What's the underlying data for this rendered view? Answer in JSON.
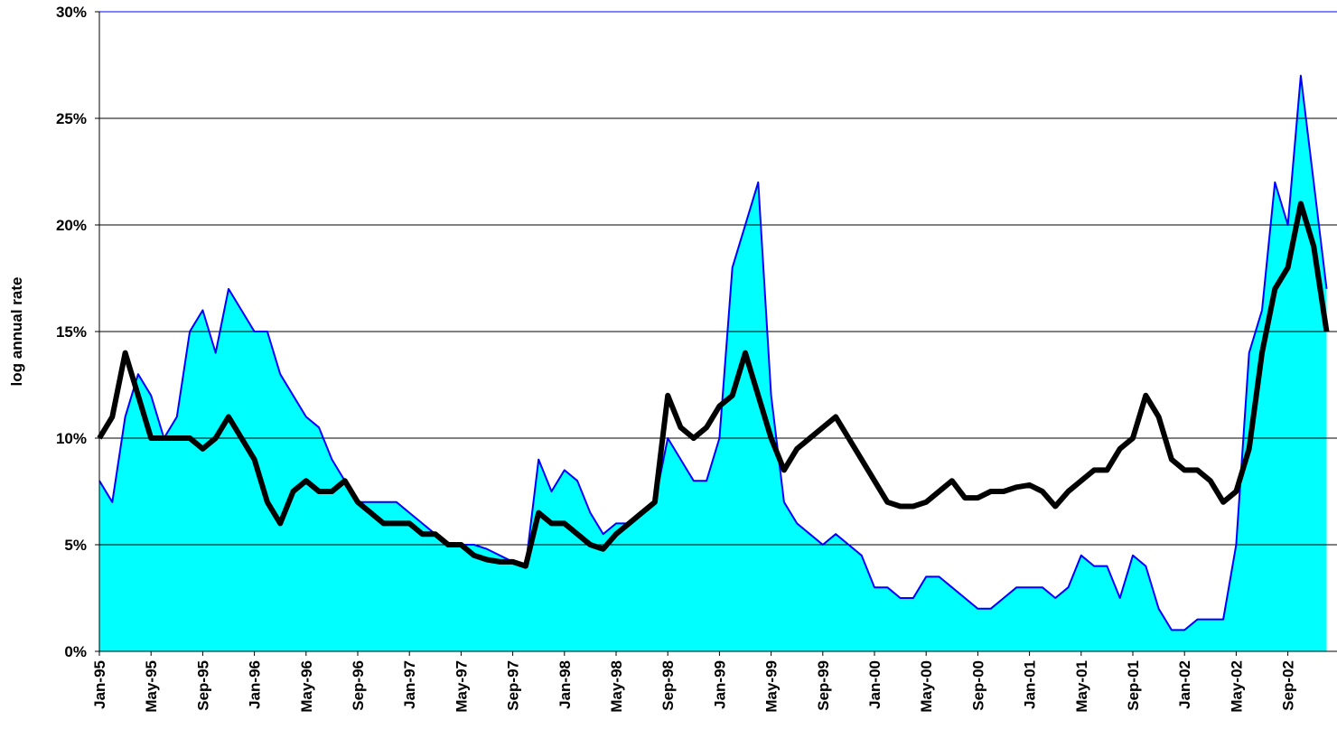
{
  "chart_data": {
    "type": "line",
    "ylabel": "log annual rate",
    "categories": [
      "Jan-95",
      null,
      null,
      null,
      "May-95",
      null,
      null,
      null,
      "Sep-95",
      null,
      null,
      null,
      "Jan-96",
      null,
      null,
      null,
      "May-96",
      null,
      null,
      null,
      "Sep-96",
      null,
      null,
      null,
      "Jan-97",
      null,
      null,
      null,
      "May-97",
      null,
      null,
      null,
      "Sep-97",
      null,
      null,
      null,
      "Jan-98",
      null,
      null,
      null,
      "May-98",
      null,
      null,
      null,
      "Sep-98",
      null,
      null,
      null,
      "Jan-99",
      null,
      null,
      null,
      "May-99",
      null,
      null,
      null,
      "Sep-99",
      null,
      null,
      null,
      "Jan-00",
      null,
      null,
      null,
      "May-00",
      null,
      null,
      null,
      "Sep-00",
      null,
      null,
      null,
      "Jan-01",
      null,
      null,
      null,
      "May-01",
      null,
      null,
      null,
      "Sep-01",
      null,
      null,
      null,
      "Jan-02",
      null,
      null,
      null,
      "May-02",
      null,
      null,
      null,
      "Sep-02",
      null,
      null,
      null
    ],
    "series": [
      {
        "color": "#0000ff",
        "fill": "#00ffff",
        "line_width": 2,
        "values": [
          8,
          7,
          11,
          13,
          12,
          10,
          11,
          15,
          16,
          14,
          17,
          16,
          15,
          15,
          13,
          12,
          11,
          10.5,
          9,
          8,
          7,
          7,
          7,
          7,
          6.5,
          6,
          5.5,
          5,
          5,
          5,
          4.8,
          4.5,
          4.2,
          4,
          9,
          7.5,
          8.5,
          8,
          6.5,
          5.5,
          6,
          6,
          6.5,
          7,
          10,
          9,
          8,
          8,
          10,
          18,
          20,
          22,
          12,
          7,
          6,
          5.5,
          5,
          5.5,
          5,
          4.5,
          3,
          3,
          2.5,
          2.5,
          3.5,
          3.5,
          3,
          2.5,
          2,
          2,
          2.5,
          3,
          3,
          3,
          2.5,
          3,
          4.5,
          4,
          4,
          2.5,
          4.5,
          4,
          2,
          1,
          1,
          1.5,
          1.5,
          1.5,
          5,
          14,
          16,
          22,
          20,
          27,
          22,
          17
        ]
      },
      {
        "color": "#000000",
        "line_width": 6,
        "values": [
          10,
          11,
          14,
          12,
          10,
          10,
          10,
          10,
          9.5,
          10,
          11,
          10,
          9,
          7,
          6,
          7.5,
          8,
          7.5,
          7.5,
          8,
          7,
          6.5,
          6,
          6,
          6,
          5.5,
          5.5,
          5,
          5,
          4.5,
          4.3,
          4.2,
          4.2,
          4,
          6.5,
          6,
          6,
          5.5,
          5,
          4.8,
          5.5,
          6,
          6.5,
          7,
          12,
          10.5,
          10,
          10.5,
          11.5,
          12,
          14,
          12,
          10,
          8.5,
          9.5,
          10,
          10.5,
          11,
          10,
          9,
          8,
          7,
          6.8,
          6.8,
          7,
          7.5,
          8,
          7.2,
          7.2,
          7.5,
          7.5,
          7.7,
          7.8,
          7.5,
          6.8,
          7.5,
          8,
          8.5,
          8.5,
          9.5,
          10,
          12,
          11,
          9,
          8.5,
          8.5,
          8,
          7,
          7.5,
          9.5,
          14,
          17,
          18,
          21,
          19,
          15
        ]
      }
    ],
    "ylim": [
      0,
      30
    ],
    "yticks": [
      {
        "value": 0,
        "label": "0%"
      },
      {
        "value": 5,
        "label": "5%"
      },
      {
        "value": 10,
        "label": "10%"
      },
      {
        "value": 15,
        "label": "15%"
      },
      {
        "value": 20,
        "label": "20%"
      },
      {
        "value": 25,
        "label": "25%"
      },
      {
        "value": 30,
        "label": "30%"
      }
    ],
    "grid": true
  }
}
